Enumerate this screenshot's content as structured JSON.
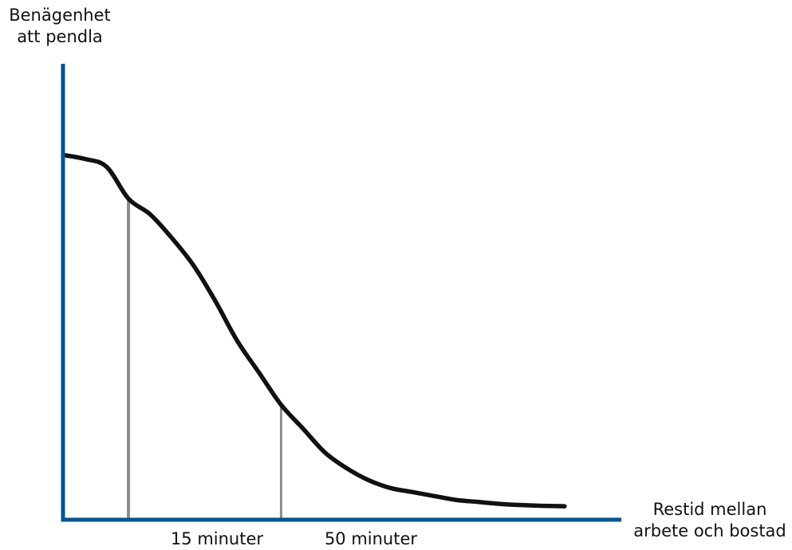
{
  "chart_data": {
    "type": "line",
    "title": "",
    "ylabel_lines": [
      "Benägenhet",
      "att pendla"
    ],
    "xlabel_lines": [
      "Restid mellan",
      "arbete och bostad"
    ],
    "annotations": [
      {
        "label": "15 minuter",
        "x": 15
      },
      {
        "label": "50 minuter",
        "x": 50
      }
    ],
    "series": [
      {
        "x": [
          0,
          5,
          10,
          15,
          20,
          25,
          30,
          35,
          40,
          45,
          50,
          55,
          60,
          65,
          70,
          75,
          80,
          85,
          90,
          95,
          100,
          105,
          110,
          115
        ],
        "y": [
          0.92,
          0.91,
          0.89,
          0.81,
          0.77,
          0.71,
          0.64,
          0.55,
          0.45,
          0.37,
          0.29,
          0.23,
          0.17,
          0.13,
          0.1,
          0.08,
          0.07,
          0.06,
          0.05,
          0.045,
          0.04,
          0.037,
          0.035,
          0.034
        ]
      }
    ],
    "xlim": [
      0,
      128
    ],
    "ylim": [
      0,
      1.15
    ],
    "grid": false,
    "colors": {
      "axis": "#005493",
      "curve": "#111111",
      "reference_line": "#8c8c8c"
    }
  }
}
